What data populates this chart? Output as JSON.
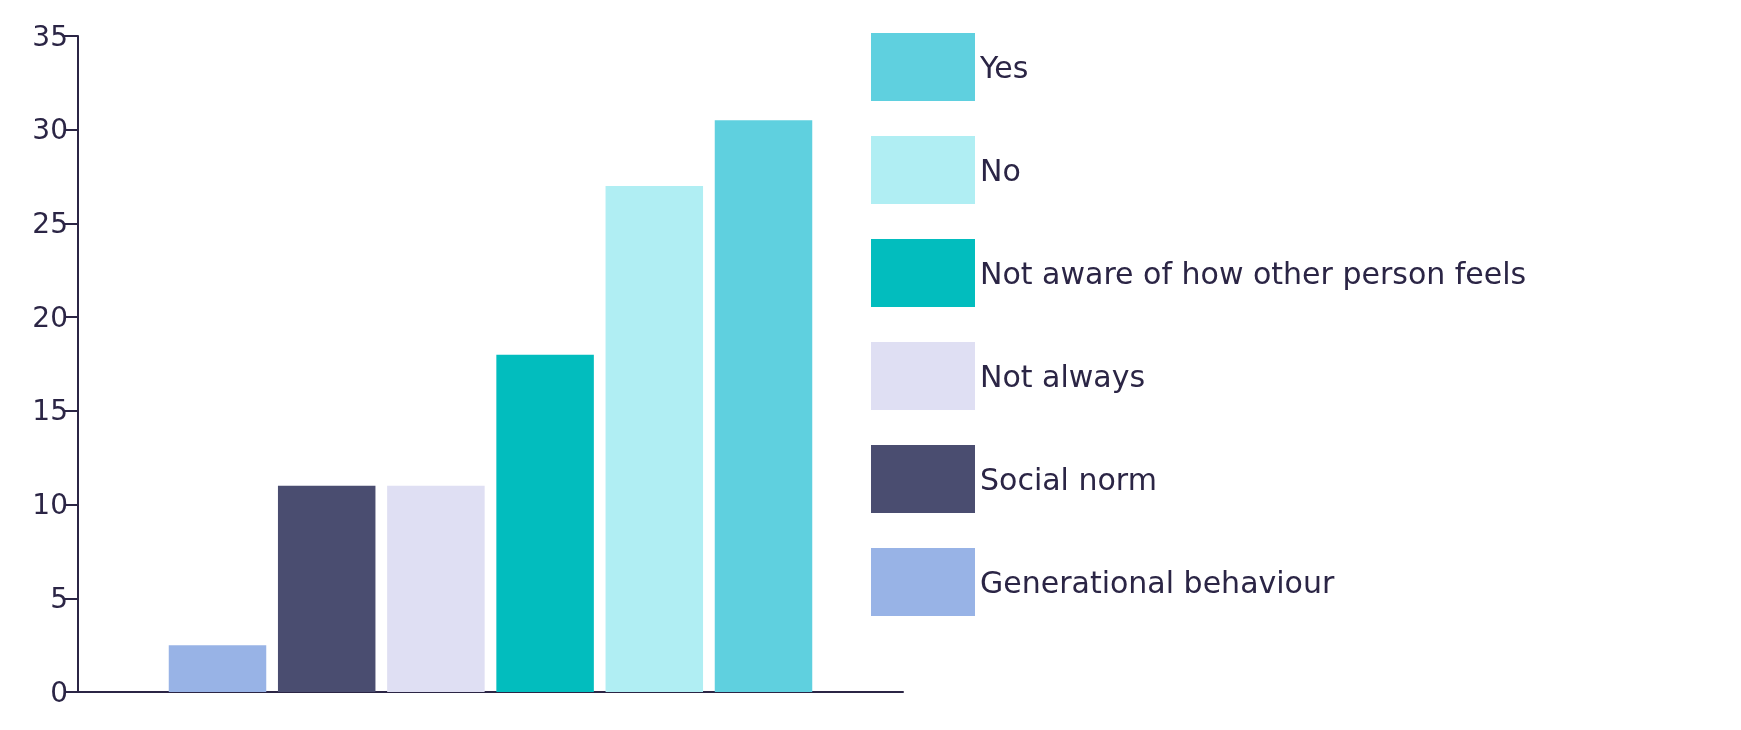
{
  "chart_data": {
    "type": "bar",
    "categories": [
      null
    ],
    "series": [
      {
        "name": "Generational behaviour",
        "color": "#98b3e6",
        "values": [
          2.5
        ]
      },
      {
        "name": "Social norm",
        "color": "#4a4d70",
        "values": [
          11
        ]
      },
      {
        "name": "Not always",
        "color": "#dfdff3",
        "values": [
          11
        ]
      },
      {
        "name": "Not aware of how other person feels",
        "color": "#02bdbe",
        "values": [
          18
        ]
      },
      {
        "name": "No",
        "color": "#b0eef3",
        "values": [
          27
        ]
      },
      {
        "name": "Yes",
        "color": "#5fd0df",
        "values": [
          30.5
        ]
      }
    ],
    "ylim": [
      0,
      35
    ],
    "yticks": [
      0,
      5,
      10,
      15,
      20,
      25,
      30,
      35
    ],
    "grid": false,
    "legend": "right"
  }
}
